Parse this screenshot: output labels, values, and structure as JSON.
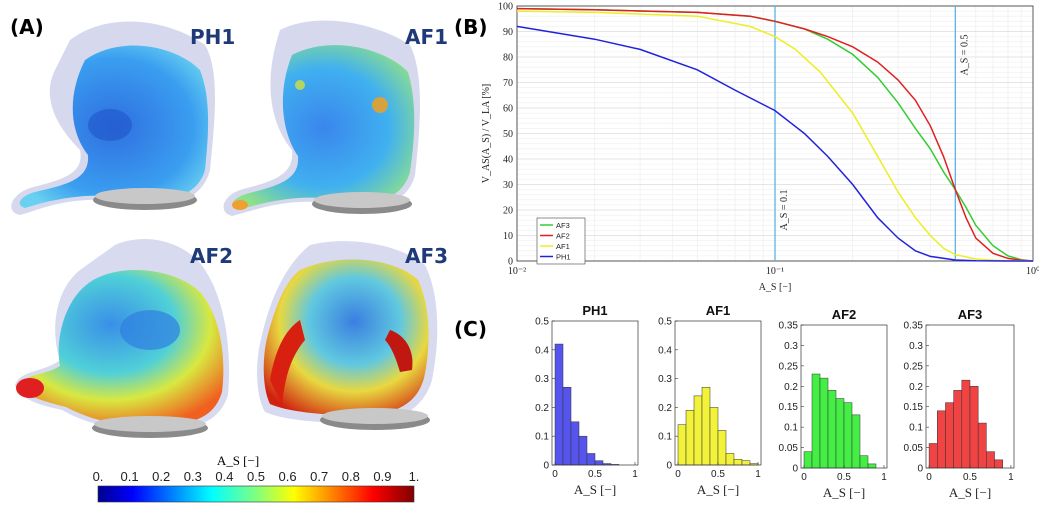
{
  "panels": {
    "a": "(A)",
    "b": "(B)",
    "c": "(C)"
  },
  "panel_a": {
    "cases": [
      "PH1",
      "AF1",
      "AF2",
      "AF3"
    ],
    "colorbar_label": "A_S [−]",
    "colorbar_ticks": [
      "0.",
      "0.1",
      "0.2",
      "0.3",
      "0.4",
      "0.5",
      "0.6",
      "0.7",
      "0.8",
      "0.9",
      "1."
    ],
    "colormap": "jet"
  },
  "chart_data": [
    {
      "type": "line",
      "panel": "(B)",
      "xscale": "log",
      "xlim": [
        0.01,
        1
      ],
      "ylim": [
        0,
        100
      ],
      "xlabel": "A_S [−]",
      "ylabel": "V_AS(A_S) / V_LA [%]",
      "xtick_labels": [
        "10⁻²",
        "10⁻¹",
        "10⁰"
      ],
      "ytick_labels": [
        "0",
        "10",
        "20",
        "30",
        "40",
        "50",
        "60",
        "70",
        "80",
        "90",
        "100"
      ],
      "grid": true,
      "legend_position": "bottom-left",
      "vlines": [
        {
          "x": 0.1,
          "label": "A_S = 0.1",
          "color": "#5ab4e6"
        },
        {
          "x": 0.5,
          "label": "A_S = 0.5",
          "color": "#5ab4e6"
        }
      ],
      "series": [
        {
          "name": "AF3",
          "color": "#33cc33",
          "x": [
            0.01,
            0.02,
            0.05,
            0.08,
            0.1,
            0.13,
            0.16,
            0.2,
            0.25,
            0.3,
            0.35,
            0.4,
            0.45,
            0.5,
            0.55,
            0.6,
            0.7,
            0.8,
            0.9,
            1.0
          ],
          "y": [
            99,
            98.5,
            97.5,
            96,
            94,
            91,
            87,
            81,
            72,
            62,
            52,
            44,
            35,
            28,
            21,
            14,
            6,
            2,
            0.5,
            0
          ]
        },
        {
          "name": "AF2",
          "color": "#e02020",
          "x": [
            0.01,
            0.02,
            0.05,
            0.08,
            0.1,
            0.13,
            0.16,
            0.2,
            0.25,
            0.3,
            0.35,
            0.4,
            0.45,
            0.5,
            0.55,
            0.6,
            0.7,
            0.8,
            0.9,
            1.0
          ],
          "y": [
            99,
            98.5,
            97.5,
            96,
            94,
            91,
            88,
            84,
            78,
            71,
            63,
            53,
            41,
            28,
            17,
            9,
            3,
            1,
            0.3,
            0
          ]
        },
        {
          "name": "AF1",
          "color": "#eeee22",
          "x": [
            0.01,
            0.02,
            0.05,
            0.08,
            0.1,
            0.12,
            0.15,
            0.2,
            0.25,
            0.3,
            0.35,
            0.4,
            0.45,
            0.5,
            0.6,
            0.7,
            0.8,
            1.0
          ],
          "y": [
            98,
            97.5,
            96,
            92,
            88,
            83,
            74,
            58,
            41,
            27,
            17,
            10,
            5,
            2.5,
            0.8,
            0.3,
            0.1,
            0
          ]
        },
        {
          "name": "PH1",
          "color": "#2222dd",
          "x": [
            0.01,
            0.02,
            0.03,
            0.05,
            0.07,
            0.1,
            0.13,
            0.16,
            0.2,
            0.25,
            0.3,
            0.35,
            0.4,
            0.5,
            0.6,
            0.8,
            1.0
          ],
          "y": [
            92,
            87,
            83,
            75,
            67,
            59,
            50,
            41,
            30,
            17,
            9,
            4,
            1.8,
            0.4,
            0.1,
            0,
            0
          ]
        }
      ]
    },
    {
      "type": "bar",
      "panel": "(C)",
      "title": "PH1",
      "color": "#5555ee",
      "bin_edges": [
        0,
        0.1,
        0.2,
        0.3,
        0.4,
        0.5,
        0.6,
        0.7,
        0.8,
        0.9,
        1.0
      ],
      "values": [
        0.42,
        0.27,
        0.15,
        0.1,
        0.04,
        0.015,
        0.005,
        0.002,
        0,
        0
      ],
      "ylim": [
        0,
        0.5
      ],
      "ytick_labels": [
        "0",
        "0.1",
        "0.2",
        "0.3",
        "0.4",
        "0.5"
      ],
      "xtick_labels": [
        "0",
        "0.5",
        "1"
      ],
      "xlabel": "A_S [−]"
    },
    {
      "type": "bar",
      "panel": "(C)",
      "title": "AF1",
      "color": "#f2f23a",
      "bin_edges": [
        0,
        0.1,
        0.2,
        0.3,
        0.4,
        0.5,
        0.6,
        0.7,
        0.8,
        0.9,
        1.0
      ],
      "values": [
        0.14,
        0.19,
        0.24,
        0.27,
        0.2,
        0.12,
        0.04,
        0.02,
        0.015,
        0.005
      ],
      "ylim": [
        0,
        0.5
      ],
      "ytick_labels": [
        "0",
        "0.1",
        "0.2",
        "0.3",
        "0.4",
        "0.5"
      ],
      "xtick_labels": [
        "0",
        "0.5",
        "1"
      ],
      "xlabel": "A_S [−]"
    },
    {
      "type": "bar",
      "panel": "(C)",
      "title": "AF2",
      "color": "#44ee44",
      "bin_edges": [
        0,
        0.1,
        0.2,
        0.3,
        0.4,
        0.5,
        0.6,
        0.7,
        0.8,
        0.9,
        1.0
      ],
      "values": [
        0.04,
        0.23,
        0.22,
        0.19,
        0.17,
        0.16,
        0.13,
        0.03,
        0.01,
        0
      ],
      "ylim": [
        0,
        0.35
      ],
      "ytick_labels": [
        "0",
        "0.05",
        "0.1",
        "0.15",
        "0.2",
        "0.25",
        "0.3",
        "0.35"
      ],
      "xtick_labels": [
        "0",
        "0.5",
        "1"
      ],
      "xlabel": "A_S [−]"
    },
    {
      "type": "bar",
      "panel": "(C)",
      "title": "AF3",
      "color": "#f04444",
      "bin_edges": [
        0,
        0.1,
        0.2,
        0.3,
        0.4,
        0.5,
        0.6,
        0.7,
        0.8,
        0.9,
        1.0
      ],
      "values": [
        0.06,
        0.14,
        0.16,
        0.19,
        0.215,
        0.2,
        0.11,
        0.04,
        0.02,
        0
      ],
      "ylim": [
        0,
        0.35
      ],
      "ytick_labels": [
        "0",
        "0.05",
        "0.1",
        "0.15",
        "0.2",
        "0.25",
        "0.3",
        "0.35"
      ],
      "xtick_labels": [
        "0",
        "0.5",
        "1"
      ],
      "xlabel": "A_S [−]"
    }
  ]
}
